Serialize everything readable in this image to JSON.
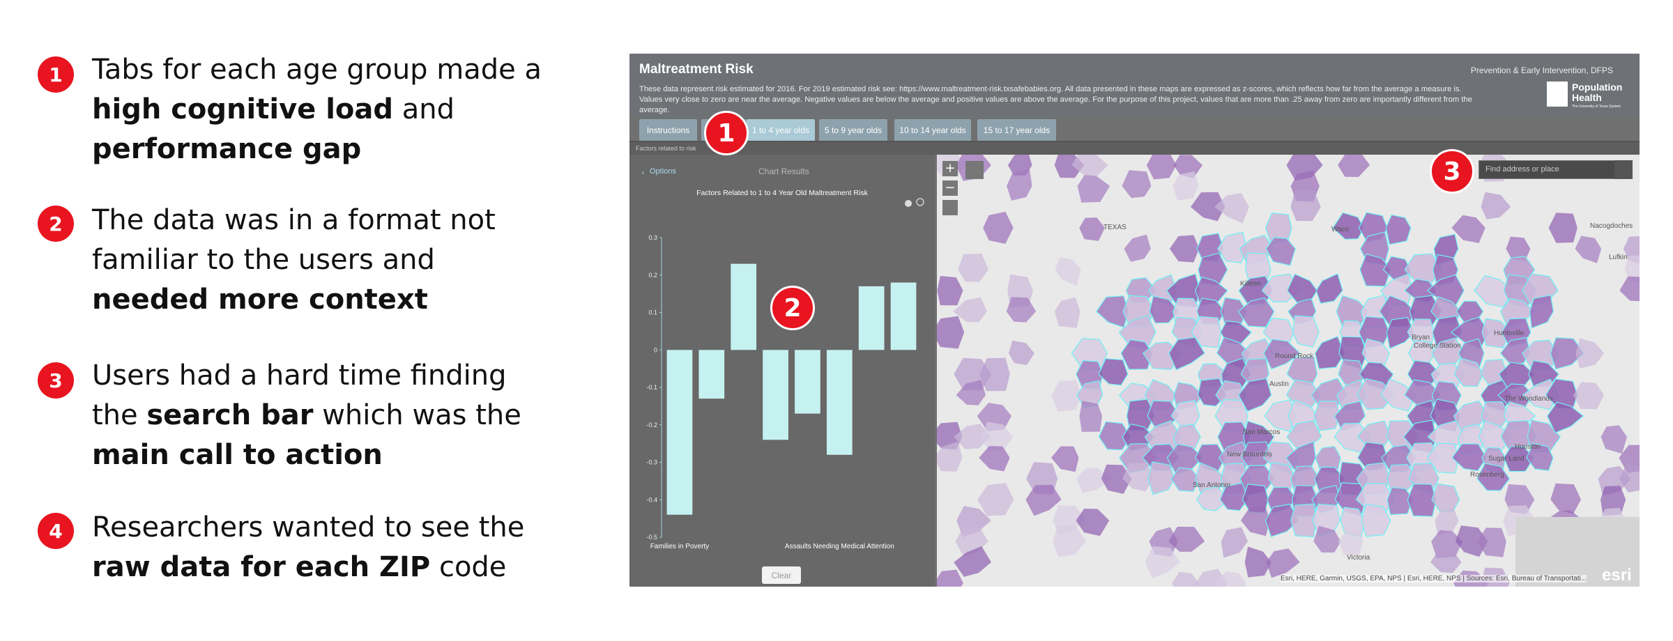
{
  "annotations": [
    {
      "number": "1",
      "segments": [
        {
          "text": "Tabs for each age group made a ",
          "bold": false
        },
        {
          "text": "high cognitive load",
          "bold": true
        },
        {
          "text": " and ",
          "bold": false
        },
        {
          "text": "performance gap",
          "bold": true
        }
      ]
    },
    {
      "number": "2",
      "segments": [
        {
          "text": "The data was in a format not familiar to the users and ",
          "bold": false
        },
        {
          "text": "needed more context",
          "bold": true
        }
      ]
    },
    {
      "number": "3",
      "segments": [
        {
          "text": "Users had a hard time finding the ",
          "bold": false
        },
        {
          "text": "search bar",
          "bold": true
        },
        {
          "text": " which was the ",
          "bold": false
        },
        {
          "text": "main call to action",
          "bold": true
        }
      ]
    },
    {
      "number": "4",
      "segments": [
        {
          "text": "Researchers wanted to see the ",
          "bold": false
        },
        {
          "text": "raw data for each ZIP",
          "bold": true
        },
        {
          "text": " code",
          "bold": false
        }
      ]
    }
  ],
  "screenshot": {
    "title": "Maltreatment Risk",
    "agency": "Prevention & Early Intervention, DFPS",
    "description": "These data represent risk estimated for 2016. For 2019 estimated risk see: https://www.maltreatment-risk.txsafebabies.org. All data presented in these maps are expressed as z-scores, which reflects how far from the average a measure is. Values very close to zero are near the average. Negative values are below the average and positive values are above the average. For the purpose of this project, values that are more than .25 away from zero are importantly different from the average.",
    "logo": "Population Health",
    "logo_sub": "The University of Texas System",
    "tabs": [
      "Instructions",
      "1 to 4 year olds",
      "5 to 9 year olds",
      "10 to 14 year olds",
      "15 to 17 year olds"
    ],
    "panel_title": "Factors related to risk",
    "options": "Options",
    "chart_results": "Chart Results",
    "clear": "Clear",
    "search_placeholder": "Find address or place",
    "attribution": "Esri, HERE, Garmin, USGS, EPA, NPS | Esri, HERE, NPS | Sources: Esri, Bureau of Transportati...",
    "esri": "esri",
    "places": [
      "TEXAS",
      "Waco",
      "Killeen",
      "Round Rock",
      "Austin",
      "San Marcos",
      "New Braunfels",
      "San Antonio",
      "Bryan",
      "College Station",
      "Huntsville",
      "The Woodlands",
      "Houston",
      "Sugar Land",
      "Rosenberg",
      "Victoria",
      "Nacogdoches",
      "Lufkin"
    ]
  },
  "chart_data": {
    "type": "bar",
    "title": "Factors Related to 1 to 4 Year Old Maltreatment Risk",
    "categories": [
      "Families in Poverty",
      null,
      null,
      null,
      null,
      "Assaults Needing Medical Attention",
      null,
      null
    ],
    "values": [
      -0.44,
      -0.13,
      0.23,
      -0.24,
      -0.17,
      -0.28,
      0.17,
      0.18
    ],
    "color": "#c6f1f1",
    "ylim": [
      -0.5,
      0.3
    ],
    "yticks": [
      0.3,
      0.2,
      0.1,
      0,
      -0.1,
      -0.2,
      -0.3,
      -0.4,
      -0.5
    ]
  }
}
